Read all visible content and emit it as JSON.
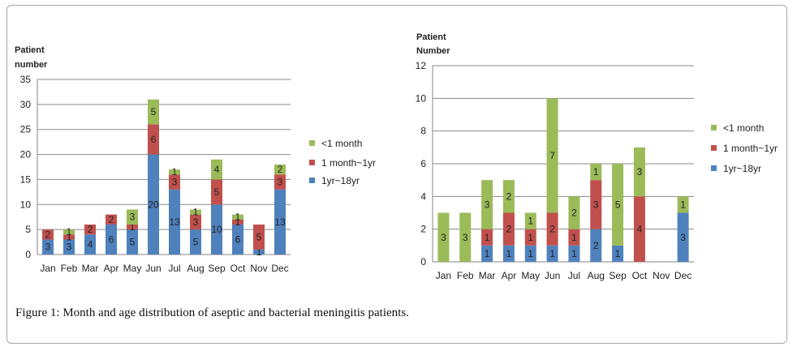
{
  "colors": {
    "lt1month": "#9bbb59",
    "month_to_yr": "#c0504d",
    "yr_to_18yr": "#4f81bd"
  },
  "caption": {
    "label": "Figure 1:",
    "text": " Month and age distribution of aseptic and bacterial meningitis patients."
  },
  "chart_data": [
    {
      "type": "bar",
      "stacked": true,
      "ylabel": [
        "Patient",
        "number"
      ],
      "ylim": [
        0,
        35
      ],
      "yticks": [
        0,
        5,
        10,
        15,
        20,
        25,
        30,
        35
      ],
      "grid": true,
      "legend_position": "right",
      "categories": [
        "Jan",
        "Feb",
        "Mar",
        "Apr",
        "May",
        "Jun",
        "Jul",
        "Aug",
        "Sep",
        "Oct",
        "Nov",
        "Dec"
      ],
      "series": [
        {
          "name": "1yr~18yr",
          "color_key": "yr_to_18yr",
          "values": [
            3,
            3,
            4,
            6,
            5,
            20,
            13,
            5,
            10,
            6,
            1,
            13
          ]
        },
        {
          "name": "1 month~1yr",
          "color_key": "month_to_yr",
          "values": [
            2,
            1,
            2,
            2,
            1,
            6,
            3,
            3,
            5,
            1,
            5,
            3
          ]
        },
        {
          "name": "<1 month",
          "color_key": "lt1month",
          "values": [
            0,
            1,
            0,
            0,
            3,
            5,
            1,
            1,
            4,
            1,
            0,
            2
          ]
        }
      ]
    },
    {
      "type": "bar",
      "stacked": true,
      "ylabel": [
        "Patient",
        "Number"
      ],
      "ylim": [
        0,
        12
      ],
      "yticks": [
        0,
        2,
        4,
        6,
        8,
        10,
        12
      ],
      "grid": true,
      "legend_position": "right",
      "categories": [
        "Jan",
        "Feb",
        "Mar",
        "Apr",
        "May",
        "Jun",
        "Jul",
        "Aug",
        "Sep",
        "Oct",
        "Nov",
        "Dec"
      ],
      "series": [
        {
          "name": "1yr~18yr",
          "color_key": "yr_to_18yr",
          "values": [
            0,
            0,
            1,
            1,
            1,
            1,
            1,
            2,
            1,
            0,
            0,
            3
          ]
        },
        {
          "name": "1 month~1yr",
          "color_key": "month_to_yr",
          "values": [
            0,
            0,
            1,
            2,
            1,
            2,
            1,
            3,
            0,
            4,
            0,
            0
          ]
        },
        {
          "name": "<1 month",
          "color_key": "lt1month",
          "values": [
            3,
            3,
            3,
            2,
            1,
            7,
            2,
            1,
            5,
            3,
            0,
            1
          ]
        }
      ]
    }
  ]
}
